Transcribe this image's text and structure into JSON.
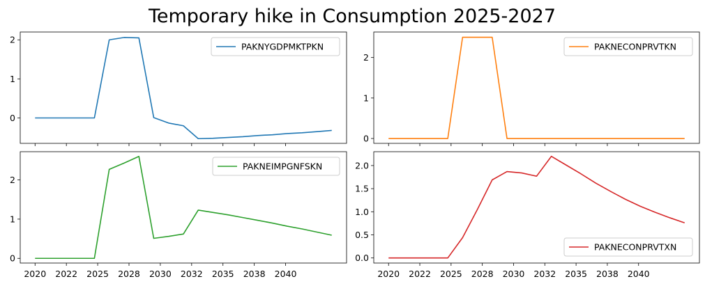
{
  "figure": {
    "title": "Temporary hike in Consumption 2025-2027"
  },
  "chart_data": [
    {
      "type": "line",
      "title": "",
      "xlabel": "",
      "ylabel": "",
      "xlim": [
        2019.0,
        2041.0
      ],
      "ylim": [
        -0.65,
        2.2
      ],
      "yticks": [
        {
          "v": 0,
          "label": "0"
        },
        {
          "v": 1,
          "label": "1"
        },
        {
          "v": 2,
          "label": "2"
        }
      ],
      "xtick_labels_visible": false,
      "legend_position": "top-right",
      "series": [
        {
          "name": "PAKNYGDPMKTPKN",
          "color": "#1f77b4",
          "points": [
            [
              2020,
              0
            ],
            [
              2021,
              0
            ],
            [
              2022,
              0
            ],
            [
              2023,
              0
            ],
            [
              2024,
              0
            ],
            [
              2025,
              2.0
            ],
            [
              2026,
              2.06
            ],
            [
              2027,
              2.05
            ],
            [
              2028,
              0.01
            ],
            [
              2029,
              -0.13
            ],
            [
              2030,
              -0.2
            ],
            [
              2031,
              -0.53
            ],
            [
              2032,
              -0.52
            ],
            [
              2033,
              -0.5
            ],
            [
              2034,
              -0.48
            ],
            [
              2035,
              -0.45
            ],
            [
              2036,
              -0.43
            ],
            [
              2037,
              -0.4
            ],
            [
              2038,
              -0.38
            ],
            [
              2039,
              -0.35
            ],
            [
              2040,
              -0.32
            ]
          ]
        }
      ]
    },
    {
      "type": "line",
      "title": "",
      "xlabel": "",
      "ylabel": "",
      "xlim": [
        2019.0,
        2041.0
      ],
      "ylim": [
        -0.12,
        2.63
      ],
      "yticks": [
        {
          "v": 0,
          "label": "0"
        },
        {
          "v": 1,
          "label": "1"
        },
        {
          "v": 2,
          "label": "2"
        }
      ],
      "xtick_labels_visible": false,
      "legend_position": "top-right",
      "series": [
        {
          "name": "PAKNECONPRVTKN",
          "color": "#ff7f0e",
          "points": [
            [
              2020,
              0
            ],
            [
              2021,
              0
            ],
            [
              2022,
              0
            ],
            [
              2023,
              0
            ],
            [
              2024,
              0
            ],
            [
              2025,
              2.5
            ],
            [
              2026,
              2.5
            ],
            [
              2027,
              2.5
            ],
            [
              2028,
              0
            ],
            [
              2029,
              0
            ],
            [
              2030,
              0
            ],
            [
              2031,
              0
            ],
            [
              2032,
              0
            ],
            [
              2033,
              0
            ],
            [
              2034,
              0
            ],
            [
              2035,
              0
            ],
            [
              2036,
              0
            ],
            [
              2037,
              0
            ],
            [
              2038,
              0
            ],
            [
              2039,
              0
            ],
            [
              2040,
              0
            ]
          ]
        }
      ]
    },
    {
      "type": "line",
      "title": "",
      "xlabel": "",
      "ylabel": "",
      "xlim": [
        2019.0,
        2041.0
      ],
      "ylim": [
        -0.12,
        2.72
      ],
      "yticks": [
        {
          "v": 0,
          "label": "0"
        },
        {
          "v": 1,
          "label": "1"
        },
        {
          "v": 2,
          "label": "2"
        }
      ],
      "xtick_labels_visible": true,
      "legend_position": "top-right",
      "series": [
        {
          "name": "PAKNEIMPGNFSKN",
          "color": "#2ca02c",
          "points": [
            [
              2020,
              0
            ],
            [
              2021,
              0
            ],
            [
              2022,
              0
            ],
            [
              2023,
              0
            ],
            [
              2024,
              0
            ],
            [
              2025,
              2.27
            ],
            [
              2026,
              2.43
            ],
            [
              2027,
              2.6
            ],
            [
              2028,
              0.51
            ],
            [
              2029,
              0.56
            ],
            [
              2030,
              0.62
            ],
            [
              2031,
              1.23
            ],
            [
              2032,
              1.17
            ],
            [
              2033,
              1.11
            ],
            [
              2034,
              1.04
            ],
            [
              2035,
              0.97
            ],
            [
              2036,
              0.9
            ],
            [
              2037,
              0.82
            ],
            [
              2038,
              0.75
            ],
            [
              2039,
              0.67
            ],
            [
              2040,
              0.59
            ]
          ]
        }
      ]
    },
    {
      "type": "line",
      "title": "",
      "xlabel": "",
      "ylabel": "",
      "xlim": [
        2019.0,
        2041.0
      ],
      "ylim": [
        -0.11,
        2.3
      ],
      "yticks": [
        {
          "v": 0,
          "label": "0.0"
        },
        {
          "v": 0.5,
          "label": "0.5"
        },
        {
          "v": 1.0,
          "label": "1.0"
        },
        {
          "v": 1.5,
          "label": "1.5"
        },
        {
          "v": 2.0,
          "label": "2.0"
        }
      ],
      "xtick_labels_visible": true,
      "legend_position": "bottom-right",
      "series": [
        {
          "name": "PAKNECONPRVTXN",
          "color": "#d62728",
          "points": [
            [
              2020,
              0
            ],
            [
              2021,
              0
            ],
            [
              2022,
              0
            ],
            [
              2023,
              0
            ],
            [
              2024,
              0
            ],
            [
              2025,
              0.44
            ],
            [
              2026,
              1.05
            ],
            [
              2027,
              1.69
            ],
            [
              2028,
              1.87
            ],
            [
              2029,
              1.84
            ],
            [
              2030,
              1.77
            ],
            [
              2031,
              2.2
            ],
            [
              2032,
              2.01
            ],
            [
              2033,
              1.82
            ],
            [
              2034,
              1.62
            ],
            [
              2035,
              1.44
            ],
            [
              2036,
              1.27
            ],
            [
              2037,
              1.12
            ],
            [
              2038,
              0.99
            ],
            [
              2039,
              0.87
            ],
            [
              2040,
              0.76
            ]
          ]
        }
      ]
    }
  ],
  "xaxis": {
    "ticks": [
      {
        "v": 2020,
        "label": "2020"
      },
      {
        "v": 2022.111,
        "label": "2022"
      },
      {
        "v": 2024.222,
        "label": "2025"
      },
      {
        "v": 2026.333,
        "label": "2028"
      },
      {
        "v": 2028.444,
        "label": "2030"
      },
      {
        "v": 2030.556,
        "label": "2032"
      },
      {
        "v": 2032.667,
        "label": "2035"
      },
      {
        "v": 2034.778,
        "label": "2038"
      },
      {
        "v": 2036.889,
        "label": "2040"
      }
    ]
  }
}
